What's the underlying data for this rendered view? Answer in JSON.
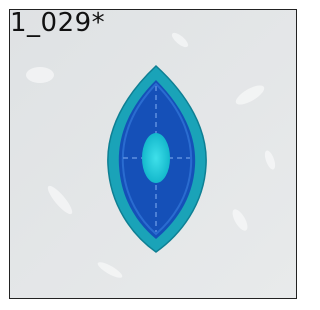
{
  "label": "1_029*"
}
